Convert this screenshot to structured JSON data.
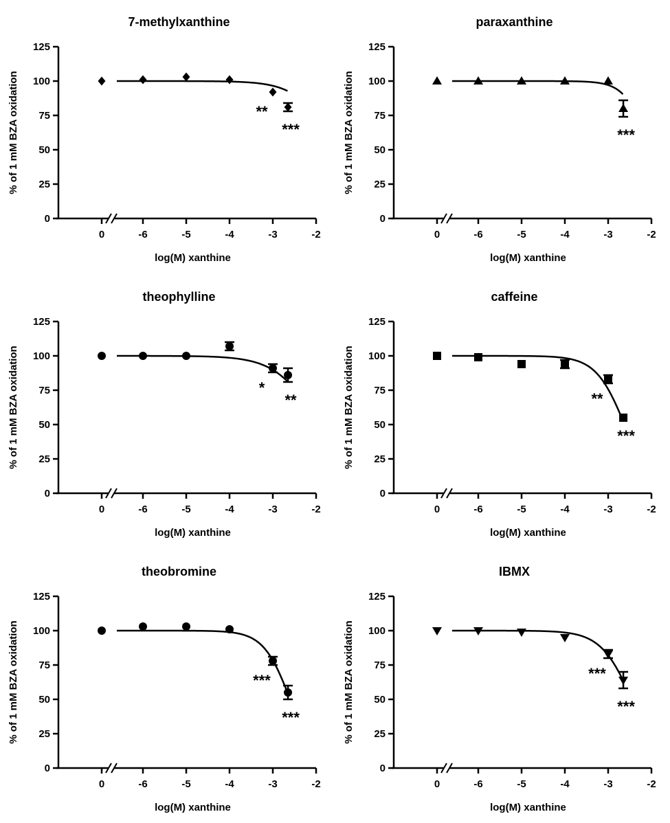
{
  "chart_data": [
    {
      "type": "scatter",
      "title": "7-methylxanthine",
      "marker": "diamond",
      "xlabel": "log(M) xanthine",
      "ylabel": "% of 1 mM BZA oxidation",
      "xlim": [
        -2.0,
        -7.0
      ],
      "ylim": [
        0,
        125
      ],
      "xticks": [
        "0",
        "-6",
        "-5",
        "-4",
        "-3",
        "-2"
      ],
      "yticks": [
        "0",
        "25",
        "50",
        "75",
        "100",
        "125"
      ],
      "axis_break": true,
      "control": {
        "x_label": "0",
        "y": 100,
        "err": 0
      },
      "points": [
        {
          "x": -6.0,
          "y": 101,
          "err": 0
        },
        {
          "x": -5.0,
          "y": 103,
          "err": 0
        },
        {
          "x": -4.0,
          "y": 101,
          "err": 0
        },
        {
          "x": -3.0,
          "y": 92,
          "err": 0,
          "sig": "**"
        },
        {
          "x": -2.65,
          "y": 81,
          "err": 3,
          "sig": "***"
        }
      ],
      "fit": {
        "top": 100,
        "bottom": 0,
        "logIC50": -1.55,
        "hill": 1.0
      }
    },
    {
      "type": "scatter",
      "title": "paraxanthine",
      "marker": "triangle-up",
      "xlabel": "log(M) xanthine",
      "ylabel": "% of 1 mM BZA oxidation",
      "xlim": [
        -2.0,
        -7.0
      ],
      "ylim": [
        0,
        125
      ],
      "xticks": [
        "0",
        "-6",
        "-5",
        "-4",
        "-3",
        "-2"
      ],
      "yticks": [
        "0",
        "25",
        "50",
        "75",
        "100",
        "125"
      ],
      "axis_break": true,
      "control": {
        "x_label": "0",
        "y": 100,
        "err": 0
      },
      "points": [
        {
          "x": -6.0,
          "y": 100,
          "err": 0
        },
        {
          "x": -5.0,
          "y": 100,
          "err": 0
        },
        {
          "x": -4.0,
          "y": 100,
          "err": 0
        },
        {
          "x": -3.0,
          "y": 100,
          "err": 0
        },
        {
          "x": -2.65,
          "y": 80,
          "err": 6,
          "sig": "***"
        }
      ],
      "fit": {
        "top": 100,
        "bottom": 0,
        "logIC50": -2.05,
        "hill": 1.6
      }
    },
    {
      "type": "scatter",
      "title": "theophylline",
      "marker": "circle",
      "xlabel": "log(M) xanthine",
      "ylabel": "% of 1 mM BZA oxidation",
      "xlim": [
        -2.0,
        -7.0
      ],
      "ylim": [
        0,
        125
      ],
      "xticks": [
        "0",
        "-6",
        "-5",
        "-4",
        "-3",
        "-2"
      ],
      "yticks": [
        "0",
        "25",
        "50",
        "75",
        "100",
        "125"
      ],
      "axis_break": true,
      "control": {
        "x_label": "0",
        "y": 100,
        "err": 0
      },
      "points": [
        {
          "x": -6.0,
          "y": 100,
          "err": 0
        },
        {
          "x": -5.0,
          "y": 100,
          "err": 0
        },
        {
          "x": -4.0,
          "y": 107,
          "err": 3
        },
        {
          "x": -3.0,
          "y": 91,
          "err": 3,
          "sig": "*"
        },
        {
          "x": -2.65,
          "y": 86,
          "err": 5,
          "sig": "**"
        }
      ],
      "fit": {
        "top": 100,
        "bottom": 0,
        "logIC50": -1.95,
        "hill": 0.9
      }
    },
    {
      "type": "scatter",
      "title": "caffeine",
      "marker": "square",
      "xlabel": "log(M) xanthine",
      "ylabel": "% of 1 mM BZA oxidation",
      "xlim": [
        -2.0,
        -7.0
      ],
      "ylim": [
        0,
        125
      ],
      "xticks": [
        "0",
        "-6",
        "-5",
        "-4",
        "-3",
        "-2"
      ],
      "yticks": [
        "0",
        "25",
        "50",
        "75",
        "100",
        "125"
      ],
      "axis_break": true,
      "control": {
        "x_label": "0",
        "y": 100,
        "err": 0
      },
      "points": [
        {
          "x": -6.0,
          "y": 99,
          "err": 0
        },
        {
          "x": -5.0,
          "y": 94,
          "err": 0
        },
        {
          "x": -4.0,
          "y": 94,
          "err": 3
        },
        {
          "x": -3.0,
          "y": 83,
          "err": 3,
          "sig": "**"
        },
        {
          "x": -2.65,
          "y": 55,
          "err": 0,
          "sig": "***"
        }
      ],
      "fit": {
        "top": 100,
        "bottom": 0,
        "logIC50": -2.62,
        "hill": 1.3
      }
    },
    {
      "type": "scatter",
      "title": "theobromine",
      "marker": "circle",
      "xlabel": "log(M) xanthine",
      "ylabel": "% of 1 mM BZA oxidation",
      "xlim": [
        -2.0,
        -7.0
      ],
      "ylim": [
        0,
        125
      ],
      "xticks": [
        "0",
        "-6",
        "-5",
        "-4",
        "-3",
        "-2"
      ],
      "yticks": [
        "0",
        "25",
        "50",
        "75",
        "100",
        "125"
      ],
      "axis_break": true,
      "control": {
        "x_label": "0",
        "y": 100,
        "err": 0
      },
      "points": [
        {
          "x": -6.0,
          "y": 103,
          "err": 0
        },
        {
          "x": -5.0,
          "y": 103,
          "err": 0
        },
        {
          "x": -4.0,
          "y": 101,
          "err": 0
        },
        {
          "x": -3.0,
          "y": 78,
          "err": 3,
          "sig": "***"
        },
        {
          "x": -2.65,
          "y": 55,
          "err": 5,
          "sig": "***"
        }
      ],
      "fit": {
        "top": 100,
        "bottom": 0,
        "logIC50": -2.6,
        "hill": 1.4
      }
    },
    {
      "type": "scatter",
      "title": "IBMX",
      "marker": "triangle-down",
      "xlabel": "log(M) xanthine",
      "ylabel": "% of 1 mM BZA oxidation",
      "xlim": [
        -2.0,
        -7.0
      ],
      "ylim": [
        0,
        125
      ],
      "xticks": [
        "0",
        "-6",
        "-5",
        "-4",
        "-3",
        "-2"
      ],
      "yticks": [
        "0",
        "25",
        "50",
        "75",
        "100",
        "125"
      ],
      "axis_break": true,
      "control": {
        "x_label": "0",
        "y": 100,
        "err": 0
      },
      "points": [
        {
          "x": -6.0,
          "y": 100,
          "err": 0
        },
        {
          "x": -5.0,
          "y": 99,
          "err": 0
        },
        {
          "x": -4.0,
          "y": 95,
          "err": 0
        },
        {
          "x": -3.0,
          "y": 83,
          "err": 3,
          "sig": "***"
        },
        {
          "x": -2.65,
          "y": 64,
          "err": 6,
          "sig": "***"
        }
      ],
      "fit": {
        "top": 100,
        "bottom": 0,
        "logIC50": -2.45,
        "hill": 1.2
      }
    }
  ]
}
